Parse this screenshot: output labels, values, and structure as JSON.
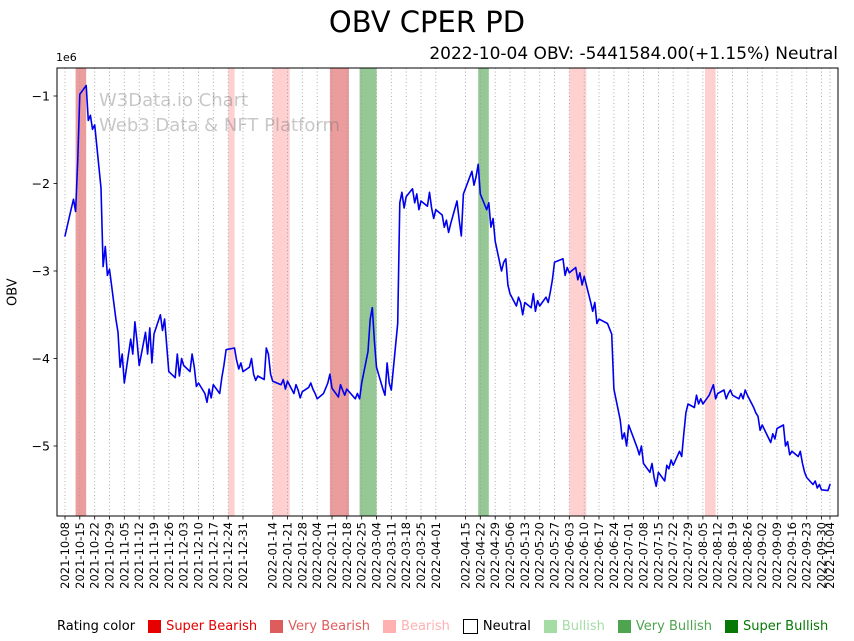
{
  "chart": {
    "title": "OBV CPER PD",
    "subtitle": "2022-10-04 OBV: -5441584.00(+1.15%) Neutral",
    "ylabel": "OBV",
    "y_multiplier": "1e6"
  },
  "watermark": {
    "line1": "W3Data.io Chart",
    "line2": "Web3 Data & NFT Platform"
  },
  "legend": {
    "title": "Rating color",
    "items": [
      {
        "label": "Super Bearish",
        "rating": "super_bearish"
      },
      {
        "label": "Very Bearish",
        "rating": "very_bearish"
      },
      {
        "label": "Bearish",
        "rating": "bearish"
      },
      {
        "label": "Neutral",
        "rating": "neutral"
      },
      {
        "label": "Bullish",
        "rating": "bullish"
      },
      {
        "label": "Very Bullish",
        "rating": "very_bullish"
      },
      {
        "label": "Super Bullish",
        "rating": "super_bullish"
      }
    ]
  },
  "rating_colors": {
    "super_bearish": "#e60000",
    "very_bearish": "#dd5c5c",
    "bearish": "#ffb0b0",
    "neutral": "#ffffff",
    "bullish": "#a5dca5",
    "very_bullish": "#4fa44f",
    "super_bullish": "#077807"
  },
  "chart_data": {
    "type": "line",
    "title": "OBV CPER PD",
    "subtitle": "2022-10-04 OBV: -5441584.00(+1.15%) Neutral",
    "ylabel": "OBV",
    "unit": "1e6",
    "line_color": "#0000ee",
    "grid": "vertical-dotted",
    "ylim": [
      -5.8,
      -0.68
    ],
    "yticks": [
      -1,
      -2,
      -3,
      -4,
      -5
    ],
    "x_start": "2021-10-08",
    "x_end": "2022-10-04",
    "xticks": [
      "2021-10-08",
      "2021-10-15",
      "2021-10-22",
      "2021-10-29",
      "2021-11-05",
      "2021-11-12",
      "2021-11-19",
      "2021-11-26",
      "2021-12-03",
      "2021-12-10",
      "2021-12-17",
      "2021-12-24",
      "2021-12-31",
      "2022-01-14",
      "2022-01-21",
      "2022-01-28",
      "2022-02-04",
      "2022-02-11",
      "2022-02-18",
      "2022-02-25",
      "2022-03-04",
      "2022-03-11",
      "2022-03-18",
      "2022-03-25",
      "2022-04-01",
      "2022-04-15",
      "2022-04-22",
      "2022-04-29",
      "2022-05-06",
      "2022-05-13",
      "2022-05-20",
      "2022-05-27",
      "2022-06-03",
      "2022-06-10",
      "2022-06-17",
      "2022-06-24",
      "2022-07-01",
      "2022-07-08",
      "2022-07-15",
      "2022-07-22",
      "2022-07-29",
      "2022-08-05",
      "2022-08-12",
      "2022-08-19",
      "2022-08-26",
      "2022-09-02",
      "2022-09-09",
      "2022-09-16",
      "2022-09-23",
      "2022-09-30",
      "2022-10-04"
    ],
    "bands": [
      {
        "from": "2021-10-13",
        "to": "2021-10-18",
        "rating": "very_bearish"
      },
      {
        "from": "2021-12-24",
        "to": "2021-12-27",
        "rating": "bearish"
      },
      {
        "from": "2022-01-14",
        "to": "2022-01-22",
        "rating": "bearish"
      },
      {
        "from": "2022-02-10",
        "to": "2022-02-19",
        "rating": "very_bearish"
      },
      {
        "from": "2022-02-24",
        "to": "2022-03-04",
        "rating": "very_bullish"
      },
      {
        "from": "2022-04-21",
        "to": "2022-04-26",
        "rating": "very_bullish"
      },
      {
        "from": "2022-06-03",
        "to": "2022-06-11",
        "rating": "bearish"
      },
      {
        "from": "2022-08-06",
        "to": "2022-08-11",
        "rating": "bearish"
      }
    ],
    "points": [
      [
        "2021-10-08",
        -2.6
      ],
      [
        "2021-10-11",
        -2.28
      ],
      [
        "2021-10-12",
        -2.18
      ],
      [
        "2021-10-13",
        -2.32
      ],
      [
        "2021-10-14",
        -1.75
      ],
      [
        "2021-10-15",
        -0.98
      ],
      [
        "2021-10-18",
        -0.88
      ],
      [
        "2021-10-19",
        -1.28
      ],
      [
        "2021-10-20",
        -1.22
      ],
      [
        "2021-10-21",
        -1.38
      ],
      [
        "2021-10-22",
        -1.33
      ],
      [
        "2021-10-25",
        -2.05
      ],
      [
        "2021-10-26",
        -2.95
      ],
      [
        "2021-10-27",
        -2.72
      ],
      [
        "2021-10-28",
        -3.05
      ],
      [
        "2021-10-29",
        -2.98
      ],
      [
        "2021-11-01",
        -3.55
      ],
      [
        "2021-11-02",
        -3.7
      ],
      [
        "2021-11-03",
        -4.1
      ],
      [
        "2021-11-04",
        -3.95
      ],
      [
        "2021-11-05",
        -4.28
      ],
      [
        "2021-11-08",
        -3.78
      ],
      [
        "2021-11-09",
        -3.95
      ],
      [
        "2021-11-10",
        -3.58
      ],
      [
        "2021-11-11",
        -3.8
      ],
      [
        "2021-11-12",
        -4.08
      ],
      [
        "2021-11-15",
        -3.7
      ],
      [
        "2021-11-16",
        -3.95
      ],
      [
        "2021-11-17",
        -3.65
      ],
      [
        "2021-11-18",
        -4.05
      ],
      [
        "2021-11-19",
        -3.72
      ],
      [
        "2021-11-22",
        -3.5
      ],
      [
        "2021-11-23",
        -3.68
      ],
      [
        "2021-11-24",
        -3.55
      ],
      [
        "2021-11-26",
        -4.15
      ],
      [
        "2021-11-29",
        -4.22
      ],
      [
        "2021-11-30",
        -3.95
      ],
      [
        "2021-12-01",
        -4.2
      ],
      [
        "2021-12-02",
        -4.0
      ],
      [
        "2021-12-03",
        -4.08
      ],
      [
        "2021-12-06",
        -4.15
      ],
      [
        "2021-12-07",
        -3.95
      ],
      [
        "2021-12-08",
        -4.1
      ],
      [
        "2021-12-09",
        -4.32
      ],
      [
        "2021-12-10",
        -4.28
      ],
      [
        "2021-12-13",
        -4.4
      ],
      [
        "2021-12-14",
        -4.5
      ],
      [
        "2021-12-15",
        -4.35
      ],
      [
        "2021-12-16",
        -4.45
      ],
      [
        "2021-12-17",
        -4.3
      ],
      [
        "2021-12-20",
        -4.4
      ],
      [
        "2021-12-21",
        -4.22
      ],
      [
        "2021-12-22",
        -4.08
      ],
      [
        "2021-12-23",
        -3.9
      ],
      [
        "2021-12-27",
        -3.88
      ],
      [
        "2021-12-28",
        -4.02
      ],
      [
        "2021-12-29",
        -4.12
      ],
      [
        "2021-12-30",
        -4.05
      ],
      [
        "2021-12-31",
        -4.15
      ],
      [
        "2022-01-03",
        -4.1
      ],
      [
        "2022-01-04",
        -4.0
      ],
      [
        "2022-01-05",
        -4.18
      ],
      [
        "2022-01-06",
        -4.25
      ],
      [
        "2022-01-07",
        -4.2
      ],
      [
        "2022-01-10",
        -4.24
      ],
      [
        "2022-01-11",
        -3.88
      ],
      [
        "2022-01-12",
        -3.95
      ],
      [
        "2022-01-13",
        -4.18
      ],
      [
        "2022-01-14",
        -4.26
      ],
      [
        "2022-01-18",
        -4.3
      ],
      [
        "2022-01-19",
        -4.24
      ],
      [
        "2022-01-20",
        -4.35
      ],
      [
        "2022-01-21",
        -4.26
      ],
      [
        "2022-01-24",
        -4.4
      ],
      [
        "2022-01-25",
        -4.3
      ],
      [
        "2022-01-26",
        -4.36
      ],
      [
        "2022-01-27",
        -4.45
      ],
      [
        "2022-01-28",
        -4.38
      ],
      [
        "2022-01-31",
        -4.33
      ],
      [
        "2022-02-01",
        -4.28
      ],
      [
        "2022-02-02",
        -4.35
      ],
      [
        "2022-02-03",
        -4.4
      ],
      [
        "2022-02-04",
        -4.46
      ],
      [
        "2022-02-07",
        -4.4
      ],
      [
        "2022-02-08",
        -4.34
      ],
      [
        "2022-02-09",
        -4.28
      ],
      [
        "2022-02-10",
        -4.18
      ],
      [
        "2022-02-11",
        -4.34
      ],
      [
        "2022-02-14",
        -4.44
      ],
      [
        "2022-02-15",
        -4.3
      ],
      [
        "2022-02-16",
        -4.36
      ],
      [
        "2022-02-17",
        -4.42
      ],
      [
        "2022-02-18",
        -4.35
      ],
      [
        "2022-02-22",
        -4.46
      ],
      [
        "2022-02-23",
        -4.4
      ],
      [
        "2022-02-24",
        -4.46
      ],
      [
        "2022-02-25",
        -4.28
      ],
      [
        "2022-02-28",
        -3.92
      ],
      [
        "2022-03-01",
        -3.55
      ],
      [
        "2022-03-02",
        -3.42
      ],
      [
        "2022-03-03",
        -3.8
      ],
      [
        "2022-03-04",
        -4.1
      ],
      [
        "2022-03-07",
        -4.35
      ],
      [
        "2022-03-08",
        -4.42
      ],
      [
        "2022-03-09",
        -4.05
      ],
      [
        "2022-03-10",
        -4.28
      ],
      [
        "2022-03-11",
        -4.36
      ],
      [
        "2022-03-14",
        -3.6
      ],
      [
        "2022-03-15",
        -2.22
      ],
      [
        "2022-03-16",
        -2.1
      ],
      [
        "2022-03-17",
        -2.28
      ],
      [
        "2022-03-18",
        -2.15
      ],
      [
        "2022-03-21",
        -2.06
      ],
      [
        "2022-03-22",
        -2.22
      ],
      [
        "2022-03-23",
        -2.12
      ],
      [
        "2022-03-24",
        -2.3
      ],
      [
        "2022-03-25",
        -2.2
      ],
      [
        "2022-03-28",
        -2.26
      ],
      [
        "2022-03-29",
        -2.1
      ],
      [
        "2022-03-30",
        -2.28
      ],
      [
        "2022-03-31",
        -2.4
      ],
      [
        "2022-04-01",
        -2.3
      ],
      [
        "2022-04-04",
        -2.36
      ],
      [
        "2022-04-05",
        -2.5
      ],
      [
        "2022-04-06",
        -2.42
      ],
      [
        "2022-04-07",
        -2.56
      ],
      [
        "2022-04-08",
        -2.46
      ],
      [
        "2022-04-11",
        -2.2
      ],
      [
        "2022-04-12",
        -2.42
      ],
      [
        "2022-04-13",
        -2.6
      ],
      [
        "2022-04-14",
        -2.12
      ],
      [
        "2022-04-18",
        -1.86
      ],
      [
        "2022-04-19",
        -2.02
      ],
      [
        "2022-04-20",
        -1.92
      ],
      [
        "2022-04-21",
        -1.78
      ],
      [
        "2022-04-22",
        -2.12
      ],
      [
        "2022-04-25",
        -2.3
      ],
      [
        "2022-04-26",
        -2.22
      ],
      [
        "2022-04-27",
        -2.5
      ],
      [
        "2022-04-28",
        -2.4
      ],
      [
        "2022-04-29",
        -2.66
      ],
      [
        "2022-05-02",
        -3.0
      ],
      [
        "2022-05-03",
        -2.9
      ],
      [
        "2022-05-04",
        -2.86
      ],
      [
        "2022-05-05",
        -3.16
      ],
      [
        "2022-05-06",
        -3.26
      ],
      [
        "2022-05-09",
        -3.4
      ],
      [
        "2022-05-10",
        -3.3
      ],
      [
        "2022-05-11",
        -3.36
      ],
      [
        "2022-05-12",
        -3.5
      ],
      [
        "2022-05-13",
        -3.36
      ],
      [
        "2022-05-16",
        -3.42
      ],
      [
        "2022-05-17",
        -3.26
      ],
      [
        "2022-05-18",
        -3.46
      ],
      [
        "2022-05-19",
        -3.34
      ],
      [
        "2022-05-20",
        -3.4
      ],
      [
        "2022-05-23",
        -3.3
      ],
      [
        "2022-05-24",
        -3.36
      ],
      [
        "2022-05-25",
        -3.24
      ],
      [
        "2022-05-26",
        -3.1
      ],
      [
        "2022-05-27",
        -2.9
      ],
      [
        "2022-05-31",
        -2.86
      ],
      [
        "2022-06-01",
        -3.05
      ],
      [
        "2022-06-02",
        -2.96
      ],
      [
        "2022-06-03",
        -3.02
      ],
      [
        "2022-06-06",
        -2.96
      ],
      [
        "2022-06-07",
        -3.1
      ],
      [
        "2022-06-08",
        -3.02
      ],
      [
        "2022-06-09",
        -3.16
      ],
      [
        "2022-06-10",
        -3.06
      ],
      [
        "2022-06-13",
        -3.35
      ],
      [
        "2022-06-14",
        -3.46
      ],
      [
        "2022-06-15",
        -3.36
      ],
      [
        "2022-06-16",
        -3.6
      ],
      [
        "2022-06-17",
        -3.55
      ],
      [
        "2022-06-21",
        -3.6
      ],
      [
        "2022-06-22",
        -3.66
      ],
      [
        "2022-06-23",
        -3.72
      ],
      [
        "2022-06-24",
        -4.35
      ],
      [
        "2022-06-27",
        -4.7
      ],
      [
        "2022-06-28",
        -4.92
      ],
      [
        "2022-06-29",
        -4.85
      ],
      [
        "2022-06-30",
        -5.0
      ],
      [
        "2022-07-01",
        -4.76
      ],
      [
        "2022-07-05",
        -5.02
      ],
      [
        "2022-07-06",
        -5.1
      ],
      [
        "2022-07-07",
        -5.0
      ],
      [
        "2022-07-08",
        -5.2
      ],
      [
        "2022-07-11",
        -5.3
      ],
      [
        "2022-07-12",
        -5.2
      ],
      [
        "2022-07-13",
        -5.36
      ],
      [
        "2022-07-14",
        -5.46
      ],
      [
        "2022-07-15",
        -5.3
      ],
      [
        "2022-07-18",
        -5.4
      ],
      [
        "2022-07-19",
        -5.22
      ],
      [
        "2022-07-20",
        -5.26
      ],
      [
        "2022-07-21",
        -5.16
      ],
      [
        "2022-07-22",
        -5.22
      ],
      [
        "2022-07-25",
        -5.06
      ],
      [
        "2022-07-26",
        -5.12
      ],
      [
        "2022-07-27",
        -4.86
      ],
      [
        "2022-07-28",
        -4.62
      ],
      [
        "2022-07-29",
        -4.52
      ],
      [
        "2022-08-01",
        -4.56
      ],
      [
        "2022-08-02",
        -4.42
      ],
      [
        "2022-08-03",
        -4.52
      ],
      [
        "2022-08-04",
        -4.46
      ],
      [
        "2022-08-05",
        -4.52
      ],
      [
        "2022-08-08",
        -4.42
      ],
      [
        "2022-08-09",
        -4.36
      ],
      [
        "2022-08-10",
        -4.3
      ],
      [
        "2022-08-11",
        -4.46
      ],
      [
        "2022-08-12",
        -4.4
      ],
      [
        "2022-08-15",
        -4.36
      ],
      [
        "2022-08-16",
        -4.46
      ],
      [
        "2022-08-17",
        -4.4
      ],
      [
        "2022-08-18",
        -4.36
      ],
      [
        "2022-08-19",
        -4.42
      ],
      [
        "2022-08-22",
        -4.46
      ],
      [
        "2022-08-23",
        -4.4
      ],
      [
        "2022-08-24",
        -4.46
      ],
      [
        "2022-08-25",
        -4.36
      ],
      [
        "2022-08-26",
        -4.42
      ],
      [
        "2022-08-29",
        -4.56
      ],
      [
        "2022-08-30",
        -4.62
      ],
      [
        "2022-08-31",
        -4.66
      ],
      [
        "2022-09-01",
        -4.82
      ],
      [
        "2022-09-02",
        -4.76
      ],
      [
        "2022-09-06",
        -4.96
      ],
      [
        "2022-09-07",
        -4.86
      ],
      [
        "2022-09-08",
        -4.92
      ],
      [
        "2022-09-09",
        -4.8
      ],
      [
        "2022-09-12",
        -4.76
      ],
      [
        "2022-09-13",
        -5.0
      ],
      [
        "2022-09-14",
        -4.95
      ],
      [
        "2022-09-15",
        -5.1
      ],
      [
        "2022-09-16",
        -5.06
      ],
      [
        "2022-09-19",
        -5.12
      ],
      [
        "2022-09-20",
        -5.06
      ],
      [
        "2022-09-21",
        -5.2
      ],
      [
        "2022-09-22",
        -5.3
      ],
      [
        "2022-09-23",
        -5.36
      ],
      [
        "2022-09-26",
        -5.44
      ],
      [
        "2022-09-27",
        -5.4
      ],
      [
        "2022-09-28",
        -5.48
      ],
      [
        "2022-09-29",
        -5.44
      ],
      [
        "2022-09-30",
        -5.5
      ],
      [
        "2022-10-03",
        -5.51
      ],
      [
        "2022-10-04",
        -5.44
      ]
    ]
  }
}
